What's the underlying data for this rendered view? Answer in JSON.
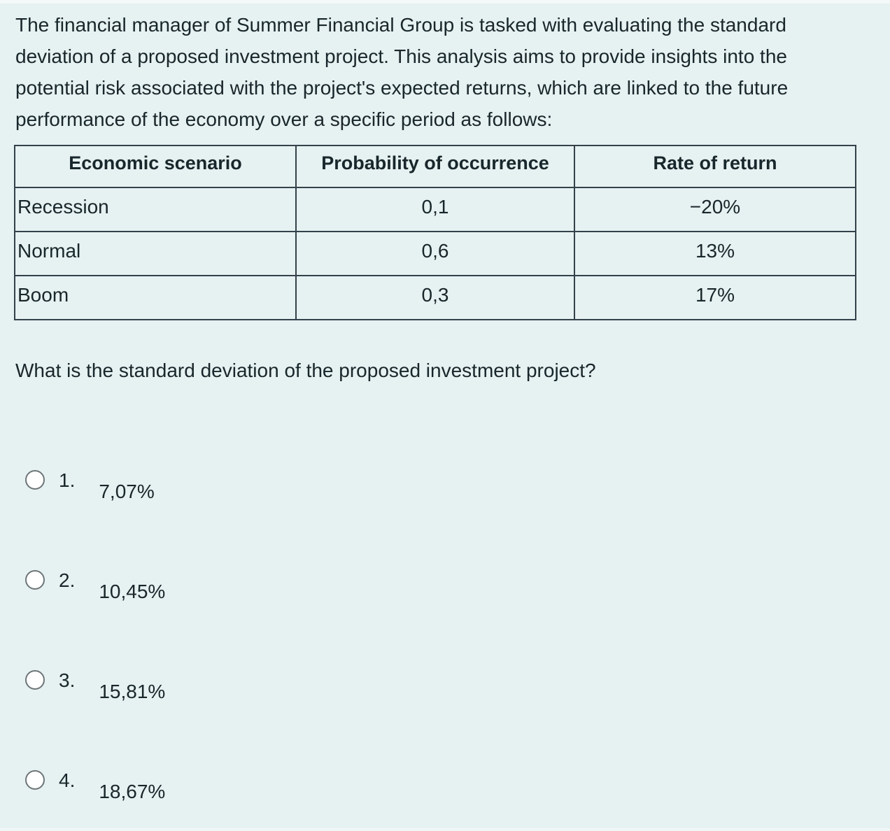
{
  "colors": {
    "background": "#e6f1f1",
    "text": "#18272b",
    "table_border": "#33414a",
    "radio_border": "#6e7679"
  },
  "intro": "The financial manager of Summer Financial Group is tasked with evaluating the standard deviation of a proposed investment project. This analysis aims to provide insights into the potential risk associated with the project's expected returns, which are linked to the future performance of the economy over a specific period as follows:",
  "table": {
    "headers": [
      "Economic scenario",
      "Probability of occurrence",
      "Rate of return"
    ],
    "rows": [
      {
        "scenario": "Recession",
        "probability": "0,1",
        "rate": "−20%"
      },
      {
        "scenario": "Normal",
        "probability": "0,6",
        "rate": "13%"
      },
      {
        "scenario": "Boom",
        "probability": "0,3",
        "rate": "17%"
      }
    ]
  },
  "question": "What is the standard deviation of the proposed investment project?",
  "options": [
    {
      "number": "1.",
      "value": "7,07%"
    },
    {
      "number": "2.",
      "value": "10,45%"
    },
    {
      "number": "3.",
      "value": "15,81%"
    },
    {
      "number": "4.",
      "value": "18,67%"
    }
  ]
}
